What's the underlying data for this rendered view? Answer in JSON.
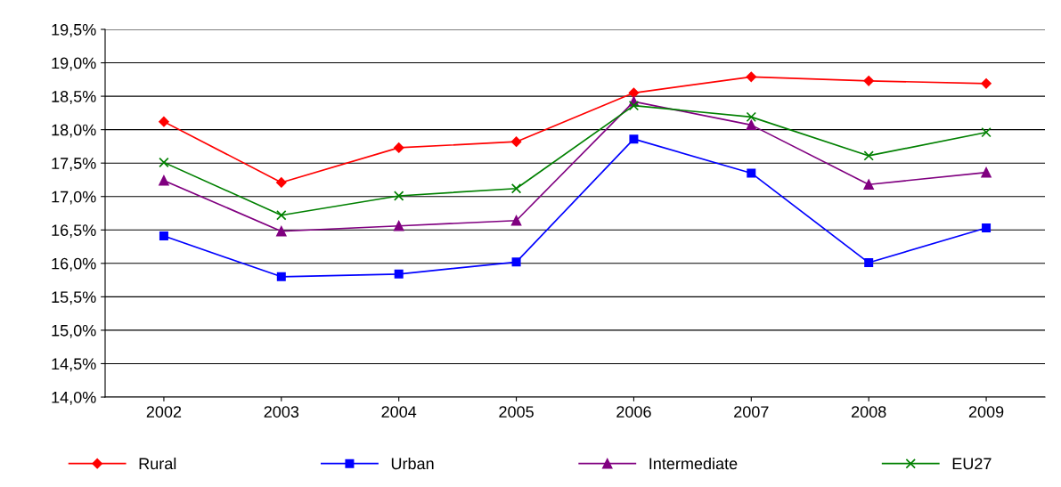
{
  "chart_data": {
    "type": "line",
    "categories": [
      "2002",
      "2003",
      "2004",
      "2005",
      "2006",
      "2007",
      "2008",
      "2009"
    ],
    "series": [
      {
        "name": "Rural",
        "color": "#ff0000",
        "marker": "diamond",
        "values": [
          18.12,
          17.21,
          17.73,
          17.82,
          18.55,
          18.79,
          18.73,
          18.69
        ]
      },
      {
        "name": "Urban",
        "color": "#0000ff",
        "marker": "square",
        "values": [
          16.41,
          15.8,
          15.84,
          16.02,
          17.86,
          17.35,
          16.01,
          16.53
        ]
      },
      {
        "name": "Intermediate",
        "color": "#800080",
        "marker": "triangle",
        "values": [
          17.24,
          16.48,
          16.56,
          16.64,
          18.42,
          18.07,
          17.18,
          17.36
        ]
      },
      {
        "name": "EU27",
        "color": "#008000",
        "marker": "cross",
        "values": [
          17.51,
          16.72,
          17.01,
          17.12,
          18.36,
          18.19,
          17.61,
          17.96
        ]
      }
    ],
    "ylim": [
      14.0,
      19.5
    ],
    "yticks": [
      {
        "value": 14.0,
        "label": "14,0%"
      },
      {
        "value": 14.5,
        "label": "14,5%"
      },
      {
        "value": 15.0,
        "label": "15,0%"
      },
      {
        "value": 15.5,
        "label": "15,5%"
      },
      {
        "value": 16.0,
        "label": "16,0%"
      },
      {
        "value": 16.5,
        "label": "16,5%"
      },
      {
        "value": 17.0,
        "label": "17,0%"
      },
      {
        "value": 17.5,
        "label": "17,5%"
      },
      {
        "value": 18.0,
        "label": "18,0%"
      },
      {
        "value": 18.5,
        "label": "18,5%"
      },
      {
        "value": 19.0,
        "label": "19,0%"
      },
      {
        "value": 19.5,
        "label": "19,5%"
      }
    ],
    "grid": "y",
    "legend": "bottom"
  }
}
